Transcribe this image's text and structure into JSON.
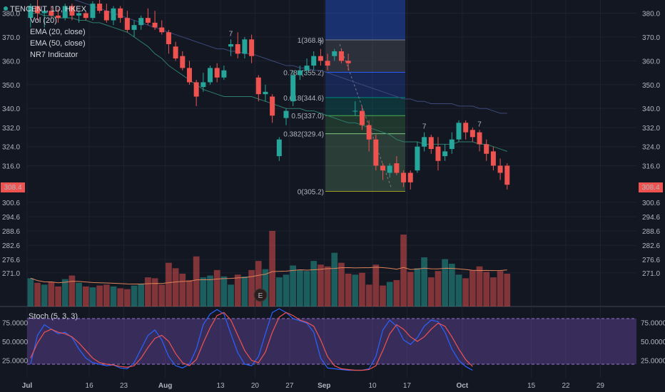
{
  "chart_data": {
    "type": "candlestick",
    "symbol_line": "TENCENT, 1D, HKEX",
    "legend": [
      "Vol (20)",
      "EMA (20, close)",
      "EMA (50, close)",
      "NR7 Indicator"
    ],
    "price_axis_ticks": [
      "380.0",
      "370.0",
      "360.0",
      "350.0",
      "340.0",
      "332.0",
      "324.0",
      "316.0",
      "300.6",
      "294.6",
      "288.6",
      "282.6",
      "276.6",
      "271.0"
    ],
    "price_tick_values": [
      380.0,
      370.0,
      360.0,
      350.0,
      340.0,
      332.0,
      324.0,
      316.0,
      300.6,
      294.6,
      288.6,
      282.6,
      276.6,
      271.0
    ],
    "last_price_label": "308.4",
    "last_price": 308.4,
    "x_axis_labels": [
      "Jul",
      "16",
      "23",
      "Aug",
      "13",
      "20",
      "27",
      "Sep",
      "10",
      "17",
      "Oct",
      "15",
      "22",
      "29"
    ],
    "x_axis_label_index": [
      0,
      9,
      14,
      20,
      28,
      33,
      38,
      43,
      50,
      55,
      63,
      73,
      78,
      83
    ],
    "candles": [
      {
        "o": 378,
        "h": 384,
        "l": 374,
        "c": 383
      },
      {
        "o": 383,
        "h": 386,
        "l": 377,
        "c": 380
      },
      {
        "o": 380,
        "h": 382,
        "l": 374,
        "c": 381
      },
      {
        "o": 381,
        "h": 383,
        "l": 378,
        "c": 379
      },
      {
        "o": 379,
        "h": 382,
        "l": 376,
        "c": 378
      },
      {
        "o": 378,
        "h": 384,
        "l": 377,
        "c": 383
      },
      {
        "o": 383,
        "h": 384,
        "l": 377,
        "c": 379
      },
      {
        "o": 379,
        "h": 381,
        "l": 376,
        "c": 380
      },
      {
        "o": 380,
        "h": 381,
        "l": 377,
        "c": 378
      },
      {
        "o": 378,
        "h": 385,
        "l": 377,
        "c": 384
      },
      {
        "o": 384,
        "h": 386,
        "l": 380,
        "c": 381
      },
      {
        "o": 381,
        "h": 384,
        "l": 376,
        "c": 377
      },
      {
        "o": 377,
        "h": 383,
        "l": 375,
        "c": 382
      },
      {
        "o": 382,
        "h": 383,
        "l": 376,
        "c": 378
      },
      {
        "o": 378,
        "h": 381,
        "l": 372,
        "c": 373
      },
      {
        "o": 373,
        "h": 377,
        "l": 370,
        "c": 375
      },
      {
        "o": 375,
        "h": 379,
        "l": 373,
        "c": 378
      },
      {
        "o": 378,
        "h": 382,
        "l": 375,
        "c": 376
      },
      {
        "o": 376,
        "h": 381,
        "l": 373,
        "c": 374
      },
      {
        "o": 374,
        "h": 377,
        "l": 371,
        "c": 372
      },
      {
        "o": 372,
        "h": 373,
        "l": 363,
        "c": 367
      },
      {
        "o": 366,
        "h": 368,
        "l": 360,
        "c": 361
      },
      {
        "o": 362,
        "h": 364,
        "l": 356,
        "c": 357
      },
      {
        "o": 357,
        "h": 360,
        "l": 350,
        "c": 351
      },
      {
        "o": 351,
        "h": 352,
        "l": 341,
        "c": 345
      },
      {
        "o": 349,
        "h": 355,
        "l": 347,
        "c": 351
      },
      {
        "o": 351,
        "h": 358,
        "l": 350,
        "c": 357
      },
      {
        "o": 357,
        "h": 359,
        "l": 351,
        "c": 353
      },
      {
        "o": 353,
        "h": 358,
        "l": 352,
        "c": 356
      },
      {
        "o": 366,
        "h": 369,
        "l": 362,
        "c": 367
      },
      {
        "o": 367,
        "h": 372,
        "l": 361,
        "c": 363
      },
      {
        "o": 363,
        "h": 370,
        "l": 361,
        "c": 369
      },
      {
        "o": 369,
        "h": 371,
        "l": 359,
        "c": 362
      },
      {
        "o": 353,
        "h": 354,
        "l": 343,
        "c": 346
      },
      {
        "o": 346,
        "h": 350,
        "l": 343,
        "c": 347
      },
      {
        "o": 345,
        "h": 346,
        "l": 334,
        "c": 337
      },
      {
        "o": 320,
        "h": 328,
        "l": 318,
        "c": 327
      },
      {
        "o": 336,
        "h": 340,
        "l": 333,
        "c": 339
      },
      {
        "o": 343,
        "h": 356,
        "l": 341,
        "c": 354
      },
      {
        "o": 354,
        "h": 358,
        "l": 352,
        "c": 356
      },
      {
        "o": 356,
        "h": 361,
        "l": 354,
        "c": 358
      },
      {
        "o": 358,
        "h": 364,
        "l": 356,
        "c": 362
      },
      {
        "o": 362,
        "h": 365,
        "l": 358,
        "c": 360
      },
      {
        "o": 360,
        "h": 363,
        "l": 356,
        "c": 358
      },
      {
        "o": 362,
        "h": 365,
        "l": 360,
        "c": 364
      },
      {
        "o": 364,
        "h": 365,
        "l": 359,
        "c": 360
      },
      {
        "o": 360,
        "h": 363,
        "l": 356,
        "c": 359
      },
      {
        "o": 339,
        "h": 343,
        "l": 337,
        "c": 339
      },
      {
        "o": 339,
        "h": 341,
        "l": 331,
        "c": 333
      },
      {
        "o": 333,
        "h": 335,
        "l": 322,
        "c": 327
      },
      {
        "o": 327,
        "h": 329,
        "l": 314,
        "c": 316
      },
      {
        "o": 316,
        "h": 317,
        "l": 310,
        "c": 314
      },
      {
        "o": 313,
        "h": 317,
        "l": 311,
        "c": 316
      },
      {
        "o": 317,
        "h": 320,
        "l": 312,
        "c": 313
      },
      {
        "o": 313,
        "h": 314,
        "l": 307,
        "c": 309
      },
      {
        "o": 313,
        "h": 314,
        "l": 306,
        "c": 309
      },
      {
        "o": 314,
        "h": 326,
        "l": 313,
        "c": 324
      },
      {
        "o": 324,
        "h": 330,
        "l": 322,
        "c": 328
      },
      {
        "o": 328,
        "h": 329,
        "l": 321,
        "c": 323
      },
      {
        "o": 324,
        "h": 328,
        "l": 314,
        "c": 318
      },
      {
        "o": 320,
        "h": 325,
        "l": 318,
        "c": 322
      },
      {
        "o": 323,
        "h": 330,
        "l": 321,
        "c": 327
      },
      {
        "o": 327,
        "h": 335,
        "l": 326,
        "c": 334
      },
      {
        "o": 334,
        "h": 335,
        "l": 327,
        "c": 330
      },
      {
        "o": 331,
        "h": 332,
        "l": 326,
        "c": 328
      },
      {
        "o": 330,
        "h": 331,
        "l": 322,
        "c": 325
      },
      {
        "o": 325,
        "h": 327,
        "l": 318,
        "c": 321
      },
      {
        "o": 322,
        "h": 324,
        "l": 314,
        "c": 316
      },
      {
        "o": 316,
        "h": 319,
        "l": 310,
        "c": 313
      },
      {
        "o": 316,
        "h": 317,
        "l": 306,
        "c": 308
      }
    ],
    "ema20": [
      380,
      380,
      379,
      379,
      378,
      378,
      378,
      377,
      377,
      376,
      376,
      375,
      374,
      373,
      372,
      370,
      368,
      366,
      363,
      361,
      358,
      356,
      354,
      352,
      350,
      348,
      347,
      346,
      345,
      345,
      345,
      345,
      345,
      344,
      343,
      342,
      341,
      340,
      340,
      340,
      339,
      339,
      338,
      337,
      336,
      335,
      334,
      334,
      333,
      332,
      331,
      330,
      329,
      327,
      326,
      326,
      326,
      325,
      325,
      325,
      325,
      325,
      326,
      326,
      326,
      325,
      325,
      324,
      323,
      322
    ],
    "ema50": [
      392,
      391,
      390,
      389,
      388,
      387,
      386,
      385,
      384,
      383,
      382,
      381,
      380,
      379,
      378,
      377,
      376,
      375,
      374,
      373,
      372,
      371,
      370,
      369,
      368,
      367,
      366,
      365,
      365,
      364,
      364,
      363,
      363,
      362,
      361,
      360,
      359,
      358,
      358,
      357,
      357,
      356,
      356,
      355,
      354,
      353,
      352,
      351,
      350,
      349,
      348,
      347,
      346,
      345,
      344,
      344,
      343,
      343,
      342,
      342,
      342,
      342,
      341,
      341,
      341,
      340,
      340,
      339,
      338,
      338
    ],
    "fib_levels": [
      {
        "label": "1(368.8)",
        "value": 368.8
      },
      {
        "label": "0.786(355.2)",
        "value": 355.2
      },
      {
        "label": "0.618(344.6)",
        "value": 344.6
      },
      {
        "label": "0.5(337.0)",
        "value": 337.0
      },
      {
        "label": "0.382(329.4)",
        "value": 329.4
      },
      {
        "label": "0(305.2)",
        "value": 305.2
      }
    ],
    "nr7_marks": [
      {
        "label": "7",
        "index": 29
      },
      {
        "label": "7",
        "index": 42
      },
      {
        "label": "7",
        "index": 57
      },
      {
        "label": "7",
        "index": 65
      }
    ],
    "event_badge": "E",
    "volume": [
      3.1,
      2.6,
      2.4,
      2.7,
      2.2,
      3.0,
      3.4,
      2.6,
      2.2,
      2.1,
      2.3,
      2.4,
      2.2,
      2.0,
      1.9,
      2.3,
      2.5,
      3.2,
      3.1,
      2.4,
      4.8,
      4.2,
      3.6,
      2.9,
      5.5,
      3.2,
      3.4,
      4.0,
      3.3,
      2.4,
      3.5,
      3.3,
      4.0,
      5.0,
      4.1,
      8.3,
      3.2,
      3.5,
      4.5,
      4.0,
      3.9,
      5.0,
      4.6,
      4.4,
      5.9,
      4.8,
      3.6,
      3.5,
      3.7,
      2.4,
      4.6,
      2.3,
      2.7,
      2.9,
      7.9,
      3.8,
      4.2,
      5.4,
      3.2,
      3.9,
      5.2,
      4.7,
      3.5,
      3.1,
      4.0,
      4.4,
      3.8,
      3.2,
      3.9,
      3.6
    ],
    "stoch_title": "Stoch (5, 3, 3)",
    "stoch_ticks": [
      "75.0000",
      "50.0000",
      "25.0000"
    ],
    "stoch_tick_values": [
      75,
      50,
      25
    ],
    "stoch_k": [
      20,
      58,
      72,
      66,
      60,
      62,
      55,
      40,
      28,
      22,
      20,
      18,
      19,
      15,
      14,
      22,
      40,
      58,
      65,
      52,
      30,
      18,
      15,
      20,
      40,
      72,
      86,
      92,
      86,
      60,
      35,
      20,
      18,
      30,
      60,
      88,
      93,
      88,
      80,
      77,
      74,
      62,
      28,
      15,
      14,
      13,
      12,
      12,
      12,
      14,
      30,
      65,
      78,
      70,
      52,
      46,
      55,
      70,
      78,
      76,
      62,
      40,
      25,
      17,
      12
    ],
    "stoch_d": [
      28,
      48,
      62,
      66,
      62,
      60,
      56,
      48,
      38,
      28,
      22,
      20,
      19,
      17,
      16,
      18,
      28,
      42,
      54,
      58,
      50,
      34,
      22,
      18,
      26,
      48,
      68,
      84,
      88,
      78,
      58,
      38,
      25,
      22,
      36,
      62,
      82,
      88,
      84,
      78,
      75,
      70,
      52,
      30,
      18,
      14,
      13,
      12,
      12,
      13,
      18,
      38,
      60,
      72,
      66,
      56,
      50,
      56,
      66,
      74,
      70,
      56,
      40,
      26,
      17
    ]
  }
}
